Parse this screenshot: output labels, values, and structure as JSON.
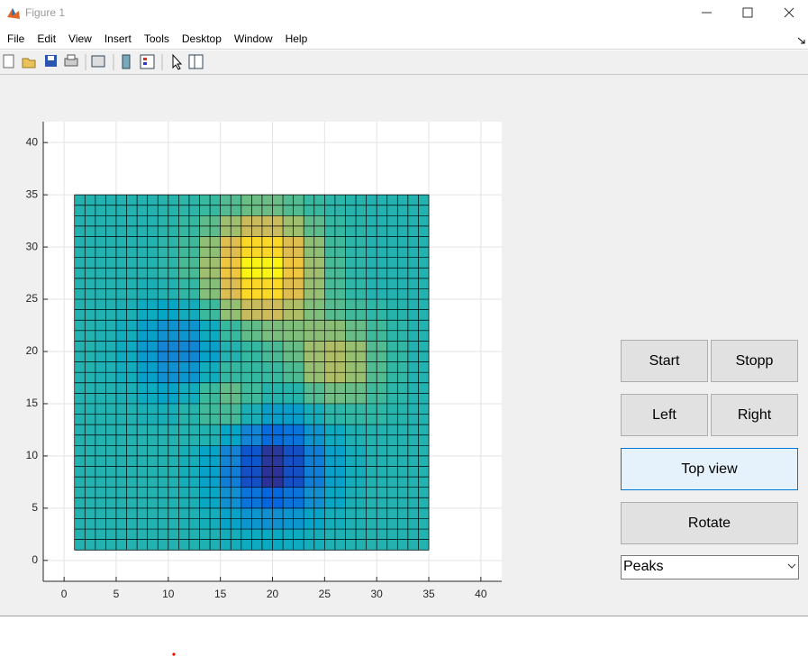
{
  "window": {
    "title": "Figure 1"
  },
  "menu": [
    "File",
    "Edit",
    "View",
    "Insert",
    "Tools",
    "Desktop",
    "Window",
    "Help"
  ],
  "chart_data": {
    "type": "surface-top",
    "xlim": [
      -2,
      42
    ],
    "ylim": [
      -2,
      42
    ],
    "xticks": [
      0,
      5,
      10,
      15,
      20,
      25,
      30,
      35,
      40
    ],
    "yticks": [
      0,
      5,
      10,
      15,
      20,
      25,
      30,
      35,
      40
    ],
    "grid": true,
    "x": [
      2,
      4,
      6,
      8,
      10,
      12,
      14,
      16,
      18,
      20,
      22,
      24,
      26,
      28,
      30,
      32,
      34
    ],
    "y": [
      2,
      4,
      6,
      8,
      10,
      12,
      14,
      16,
      18,
      20,
      22,
      24,
      26,
      28,
      30,
      32,
      34
    ],
    "mesh_lines_per_cell": 2,
    "clim": [
      -6.5,
      8
    ],
    "colormap": [
      "#352a87",
      "#0363e1",
      "#1485d4",
      "#06a7c6",
      "#38b99e",
      "#92bf73",
      "#d9ba56",
      "#fcce2e",
      "#f9fb0e"
    ],
    "z": [
      [
        0,
        0,
        0,
        0,
        0,
        -0.1,
        -0.2,
        -0.5,
        -0.8,
        -0.9,
        -0.8,
        -0.5,
        -0.2,
        -0.1,
        0,
        0,
        0
      ],
      [
        0,
        0,
        0,
        0,
        0,
        -0.2,
        -0.5,
        -1.2,
        -2.0,
        -2.3,
        -2.0,
        -1.2,
        -0.5,
        -0.2,
        0,
        0,
        0
      ],
      [
        0,
        0,
        0,
        0,
        -0.1,
        -0.3,
        -1.0,
        -2.3,
        -3.8,
        -4.5,
        -3.8,
        -2.3,
        -1.0,
        -0.3,
        0,
        0,
        0
      ],
      [
        0,
        0,
        0,
        0,
        -0.1,
        -0.5,
        -1.4,
        -3.3,
        -5.3,
        -6.2,
        -5.3,
        -3.3,
        -1.4,
        -0.5,
        -0.1,
        0,
        0
      ],
      [
        0,
        0,
        0,
        0,
        -0.1,
        -0.4,
        -1.2,
        -3.0,
        -5.1,
        -6.1,
        -5.3,
        -3.3,
        -1.4,
        -0.5,
        -0.1,
        0,
        0
      ],
      [
        0,
        0,
        0,
        0,
        0,
        0,
        -0.1,
        -1.1,
        -2.9,
        -4.2,
        -3.8,
        -2.1,
        -0.8,
        -0.2,
        0,
        0,
        0
      ],
      [
        0,
        0,
        -0.1,
        -0.3,
        -0.4,
        0.1,
        0.9,
        1.0,
        -0.3,
        -1.5,
        -1.6,
        -0.5,
        0.3,
        0.5,
        0.4,
        0.1,
        0
      ],
      [
        0,
        -0.1,
        -0.3,
        -0.8,
        -1.2,
        -0.6,
        0.8,
        1.6,
        0.9,
        0.1,
        0.1,
        1.3,
        1.9,
        1.7,
        0.9,
        0.3,
        0
      ],
      [
        0,
        -0.2,
        -0.6,
        -1.5,
        -2.3,
        -2.0,
        -0.6,
        0.6,
        0.6,
        0.7,
        1.2,
        2.7,
        3.3,
        2.7,
        1.3,
        0.5,
        0
      ],
      [
        0,
        -0.2,
        -0.8,
        -1.8,
        -2.9,
        -2.8,
        -1.4,
        0,
        0.6,
        1.1,
        1.7,
        2.9,
        3.3,
        2.7,
        1.3,
        0.5,
        0
      ],
      [
        0,
        -0.2,
        -0.6,
        -1.5,
        -2.2,
        -2.1,
        -0.8,
        0.7,
        1.6,
        2.1,
        2.2,
        2.4,
        2.4,
        1.7,
        0.9,
        0.3,
        0
      ],
      [
        0,
        -0.1,
        -0.3,
        -0.8,
        -1.1,
        -0.6,
        0.8,
        2.6,
        3.9,
        4.1,
        3.3,
        2.2,
        1.4,
        0.9,
        0.4,
        0.1,
        0
      ],
      [
        0,
        0,
        -0.1,
        -0.3,
        -0.1,
        0.5,
        2.3,
        4.6,
        6.6,
        6.6,
        4.7,
        2.7,
        1.1,
        0.4,
        0,
        0,
        0
      ],
      [
        0,
        0,
        0,
        0,
        0.3,
        1.1,
        2.9,
        5.5,
        7.7,
        7.7,
        5.5,
        2.9,
        1.1,
        0.3,
        0,
        0,
        0
      ],
      [
        0,
        0,
        0,
        0,
        0.3,
        0.9,
        2.5,
        4.7,
        6.6,
        6.6,
        4.7,
        2.5,
        0.9,
        0.3,
        0,
        0,
        0
      ],
      [
        0,
        0,
        0,
        0,
        0.2,
        0.6,
        1.5,
        2.9,
        4.0,
        4.0,
        2.9,
        1.5,
        0.6,
        0.2,
        0,
        0,
        0
      ],
      [
        0,
        0,
        0,
        0,
        0.1,
        0.3,
        0.7,
        1.3,
        1.8,
        1.8,
        1.3,
        0.7,
        0.3,
        0.1,
        0,
        0,
        0
      ]
    ]
  },
  "controls": {
    "buttons": [
      "Start",
      "Stopp",
      "Left",
      "Right",
      "Top view",
      "Rotate"
    ],
    "dropdown": "Peaks"
  }
}
